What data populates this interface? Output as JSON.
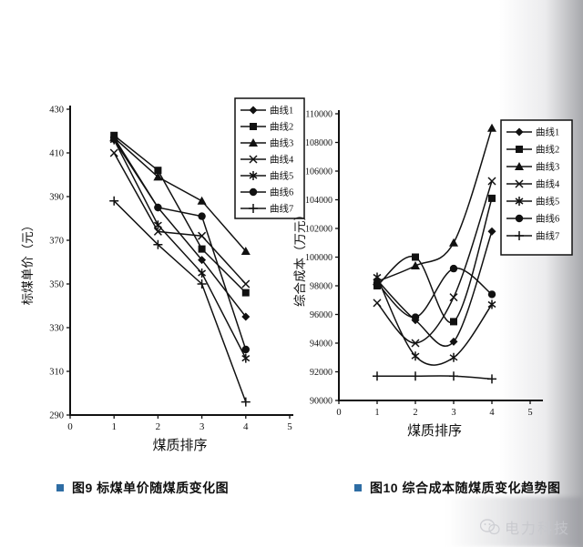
{
  "captions": {
    "left": {
      "text": "图9 标煤单价随煤质变化图"
    },
    "right": {
      "text": "图10 综合成本随煤质变化趋势图"
    }
  },
  "watermark": {
    "text": "电力科技"
  },
  "accent_color": "#2e6da4",
  "chart_data": [
    {
      "type": "line",
      "title": "",
      "xlabel": "煤质排序",
      "ylabel": "标煤单价（元）",
      "xlim": [
        0,
        5
      ],
      "ylim": [
        290,
        430
      ],
      "ytick_step": 20,
      "grid": false,
      "smooth": false,
      "legend_position": "top-right",
      "x": [
        1,
        2,
        3,
        4
      ],
      "series": [
        {
          "name": "曲线1",
          "marker": "diamond",
          "values": [
            416,
            385,
            361,
            335
          ]
        },
        {
          "name": "曲线2",
          "marker": "square",
          "values": [
            418,
            402,
            366,
            346
          ]
        },
        {
          "name": "曲线3",
          "marker": "triangle",
          "values": [
            417,
            399,
            388,
            365
          ]
        },
        {
          "name": "曲线4",
          "marker": "x",
          "values": [
            410,
            374,
            372,
            350
          ]
        },
        {
          "name": "曲线5",
          "marker": "star",
          "values": [
            416,
            377,
            355,
            316
          ]
        },
        {
          "name": "曲线6",
          "marker": "circle",
          "values": [
            417,
            385,
            381,
            320
          ]
        },
        {
          "name": "曲线7",
          "marker": "plus",
          "values": [
            388,
            368,
            350,
            296
          ]
        }
      ]
    },
    {
      "type": "line",
      "title": "",
      "xlabel": "煤质排序",
      "ylabel": "综合成本（万元）",
      "xlim": [
        0,
        5
      ],
      "ylim": [
        90000,
        110000
      ],
      "ytick_step": 2000,
      "grid": false,
      "smooth": true,
      "legend_position": "right",
      "x": [
        1,
        2,
        3,
        4
      ],
      "series": [
        {
          "name": "曲线1",
          "marker": "diamond",
          "values": [
            98400,
            95600,
            94100,
            101800
          ]
        },
        {
          "name": "曲线2",
          "marker": "square",
          "values": [
            98000,
            100000,
            95500,
            104100
          ]
        },
        {
          "name": "曲线3",
          "marker": "triangle",
          "values": [
            98300,
            99400,
            101000,
            109000
          ]
        },
        {
          "name": "曲线4",
          "marker": "x",
          "values": [
            96800,
            94000,
            97200,
            105300
          ]
        },
        {
          "name": "曲线5",
          "marker": "star",
          "values": [
            98600,
            93100,
            93000,
            96700
          ]
        },
        {
          "name": "曲线6",
          "marker": "circle",
          "values": [
            98200,
            95800,
            99200,
            97400
          ]
        },
        {
          "name": "曲线7",
          "marker": "plus",
          "values": [
            91700,
            91700,
            91700,
            91500
          ]
        }
      ]
    }
  ]
}
